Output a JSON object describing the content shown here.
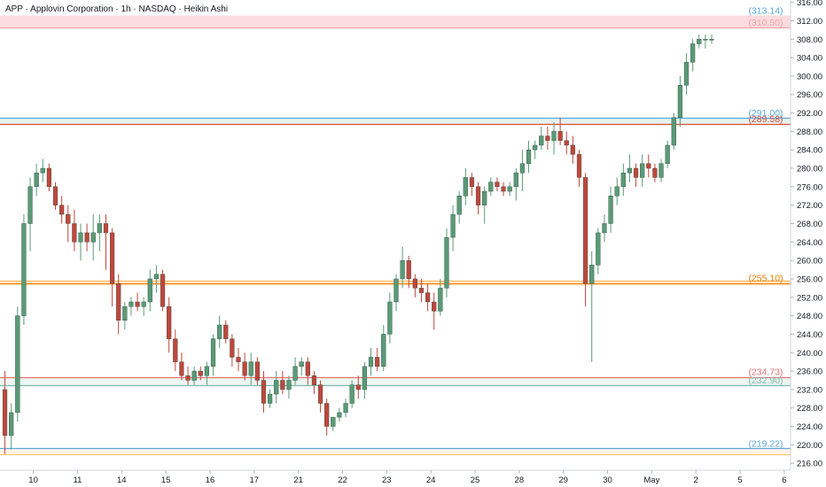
{
  "chart_data": {
    "type": "candlestick",
    "title": "APP · Applovin Corporation · 1h · NASDAQ · Heikin Ashi",
    "xlabel": "",
    "ylabel": "",
    "ylim": [
      214.5,
      316.5
    ],
    "grid": false,
    "yticks": [
      216,
      220,
      224,
      228,
      232,
      236,
      240,
      244,
      248,
      252,
      256,
      260,
      264,
      268,
      272,
      276,
      280,
      284,
      288,
      292,
      296,
      300,
      304,
      308,
      312,
      316
    ],
    "ytick_labels": [
      "216.00",
      "220.00",
      "224.00",
      "228.00",
      "232.00",
      "236.00",
      "240.00",
      "244.00",
      "248.00",
      "252.00",
      "256.00",
      "260.00",
      "264.00",
      "268.00",
      "272.00",
      "276.00",
      "280.00",
      "284.00",
      "288.00",
      "292.00",
      "296.00",
      "300.00",
      "304.00",
      "308.00",
      "312.00",
      "316.00"
    ],
    "xticks": [
      {
        "label": "10",
        "idx": 4.5
      },
      {
        "label": "11",
        "idx": 11.5
      },
      {
        "label": "14",
        "idx": 18.5
      },
      {
        "label": "15",
        "idx": 25.5
      },
      {
        "label": "16",
        "idx": 32.5
      },
      {
        "label": "17",
        "idx": 39.5
      },
      {
        "label": "21",
        "idx": 46.5
      },
      {
        "label": "22",
        "idx": 53.5
      },
      {
        "label": "23",
        "idx": 60.5
      },
      {
        "label": "24",
        "idx": 67.5
      },
      {
        "label": "25",
        "idx": 74.5
      },
      {
        "label": "28",
        "idx": 81.5
      },
      {
        "label": "29",
        "idx": 88.5
      },
      {
        "label": "30",
        "idx": 95.5
      },
      {
        "label": "May",
        "idx": 102.5
      },
      {
        "label": "2",
        "idx": 109.5
      },
      {
        "label": "5",
        "idx": 116.5
      },
      {
        "label": "6",
        "idx": 123.5
      }
    ],
    "zones": [
      {
        "low": 310.5,
        "high": 313.14,
        "color": "#f9c0c5"
      },
      {
        "low": 289.58,
        "high": 291.0,
        "color": "#cfe8e0"
      },
      {
        "low": 254.5,
        "high": 255.6,
        "color": "#fde3c0"
      },
      {
        "low": 232.9,
        "high": 234.73,
        "color": "#ddeee9"
      },
      {
        "low": 218.0,
        "high": 219.22,
        "color": "#fdebd0"
      }
    ],
    "levels": [
      {
        "value": 313.14,
        "label": "(313.14)",
        "color": "#5aa9df",
        "line": false
      },
      {
        "value": 310.5,
        "label": "(310.50)",
        "color": "#f3a2aa",
        "line": true
      },
      {
        "value": 291.0,
        "label": "(291.00)",
        "color": "#5aa9df",
        "line": true
      },
      {
        "value": 289.58,
        "label": "(289.58)",
        "color": "#d94f3a",
        "line": true
      },
      {
        "value": 255.6,
        "label": "",
        "color": "#f7b85c",
        "line": true
      },
      {
        "value": 255.1,
        "label": "(255.10)",
        "color": "#f57c00",
        "line": true
      },
      {
        "value": 234.73,
        "label": "(234.73)",
        "color": "#e57373",
        "line": true
      },
      {
        "value": 232.9,
        "label": "(232.90)",
        "color": "#81b9ad",
        "line": true
      },
      {
        "value": 219.22,
        "label": "(219.22)",
        "color": "#5aa9df",
        "line": true
      },
      {
        "value": 218.0,
        "label": "",
        "color": "#f7c873",
        "line": true
      }
    ],
    "candles": [
      [
        232,
        236,
        218,
        222
      ],
      [
        222,
        229,
        219,
        227
      ],
      [
        227,
        250,
        225,
        248
      ],
      [
        248,
        270,
        246,
        268
      ],
      [
        268,
        278,
        262,
        276
      ],
      [
        276,
        281,
        274,
        279
      ],
      [
        279,
        282,
        277,
        280
      ],
      [
        280,
        281,
        275,
        276
      ],
      [
        276,
        277,
        271,
        272
      ],
      [
        272,
        274,
        268,
        270
      ],
      [
        270,
        272,
        264,
        268
      ],
      [
        268,
        271,
        262,
        264
      ],
      [
        264,
        268,
        260,
        266
      ],
      [
        266,
        268,
        262,
        264
      ],
      [
        264,
        270,
        260,
        266
      ],
      [
        266,
        270,
        262,
        268
      ],
      [
        268,
        270,
        258,
        266
      ],
      [
        266,
        267,
        250,
        255
      ],
      [
        255,
        257,
        244,
        247
      ],
      [
        247,
        251,
        245,
        250
      ],
      [
        250,
        252,
        248,
        251
      ],
      [
        251,
        253,
        249,
        250
      ],
      [
        250,
        252,
        248,
        251
      ],
      [
        251,
        258,
        249,
        256
      ],
      [
        256,
        259,
        253,
        257
      ],
      [
        257,
        258,
        249,
        250
      ],
      [
        250,
        252,
        240,
        243
      ],
      [
        243,
        245,
        236,
        238
      ],
      [
        238,
        240,
        234,
        235
      ],
      [
        235,
        237,
        233,
        234
      ],
      [
        234,
        237,
        233,
        236
      ],
      [
        236,
        237,
        234,
        235
      ],
      [
        235,
        238,
        233,
        237
      ],
      [
        237,
        244,
        235,
        243
      ],
      [
        243,
        248,
        241,
        246
      ],
      [
        246,
        247,
        242,
        243
      ],
      [
        243,
        244,
        237,
        239
      ],
      [
        239,
        241,
        236,
        238
      ],
      [
        238,
        240,
        234,
        235
      ],
      [
        235,
        240,
        233,
        238
      ],
      [
        238,
        239,
        233,
        234
      ],
      [
        234,
        236,
        227,
        229
      ],
      [
        229,
        232,
        228,
        231
      ],
      [
        231,
        236,
        229,
        234
      ],
      [
        234,
        236,
        231,
        232
      ],
      [
        232,
        235,
        230,
        234
      ],
      [
        234,
        239,
        233,
        237
      ],
      [
        237,
        239,
        235,
        238
      ],
      [
        238,
        239,
        233,
        235
      ],
      [
        235,
        236,
        231,
        233
      ],
      [
        233,
        234,
        227,
        229
      ],
      [
        229,
        230,
        222,
        224
      ],
      [
        224,
        226,
        223,
        226
      ],
      [
        226,
        228,
        225,
        227
      ],
      [
        227,
        230,
        226,
        229
      ],
      [
        229,
        234,
        228,
        233
      ],
      [
        233,
        235,
        230,
        232
      ],
      [
        232,
        238,
        230,
        237
      ],
      [
        237,
        241,
        235,
        239
      ],
      [
        239,
        241,
        236,
        237
      ],
      [
        237,
        246,
        236,
        244
      ],
      [
        244,
        253,
        242,
        251
      ],
      [
        251,
        257,
        249,
        256
      ],
      [
        256,
        263,
        254,
        260
      ],
      [
        260,
        261,
        254,
        256
      ],
      [
        256,
        257,
        252,
        254
      ],
      [
        254,
        256,
        251,
        253
      ],
      [
        253,
        255,
        249,
        251
      ],
      [
        251,
        253,
        245,
        249
      ],
      [
        249,
        256,
        248,
        254
      ],
      [
        254,
        267,
        252,
        265
      ],
      [
        265,
        272,
        262,
        270
      ],
      [
        270,
        275,
        268,
        274
      ],
      [
        274,
        280,
        272,
        278
      ],
      [
        278,
        279,
        274,
        276
      ],
      [
        276,
        277,
        270,
        272
      ],
      [
        272,
        276,
        268,
        275
      ],
      [
        275,
        278,
        274,
        277
      ],
      [
        277,
        278,
        275,
        276
      ],
      [
        276,
        277,
        274,
        275
      ],
      [
        275,
        277,
        274,
        276
      ],
      [
        276,
        280,
        273,
        279
      ],
      [
        279,
        284,
        275,
        281
      ],
      [
        281,
        286,
        279,
        284
      ],
      [
        284,
        286,
        282,
        285
      ],
      [
        285,
        289,
        284,
        287
      ],
      [
        287,
        289,
        284,
        286
      ],
      [
        286,
        290,
        283,
        288
      ],
      [
        288,
        291,
        285,
        286
      ],
      [
        286,
        288,
        283,
        285
      ],
      [
        285,
        287,
        281,
        283
      ],
      [
        283,
        284,
        276,
        278
      ],
      [
        278,
        279,
        250,
        255
      ],
      [
        255,
        262,
        238,
        259
      ],
      [
        259,
        267,
        257,
        266
      ],
      [
        266,
        270,
        264,
        268
      ],
      [
        268,
        276,
        266,
        274
      ],
      [
        274,
        278,
        272,
        276
      ],
      [
        276,
        281,
        274,
        279
      ],
      [
        279,
        283,
        277,
        280
      ],
      [
        280,
        281,
        276,
        278
      ],
      [
        278,
        283,
        276,
        281
      ],
      [
        281,
        283,
        278,
        280
      ],
      [
        280,
        281,
        277,
        278
      ],
      [
        278,
        282,
        277,
        281
      ],
      [
        281,
        286,
        280,
        285
      ],
      [
        285,
        292,
        284,
        291
      ],
      [
        291,
        300,
        289,
        298
      ],
      [
        298,
        305,
        296,
        303
      ],
      [
        303,
        308,
        301,
        307
      ],
      [
        307,
        309,
        306,
        308
      ],
      [
        308,
        309,
        306,
        308
      ],
      [
        308,
        309,
        307,
        308
      ]
    ]
  }
}
